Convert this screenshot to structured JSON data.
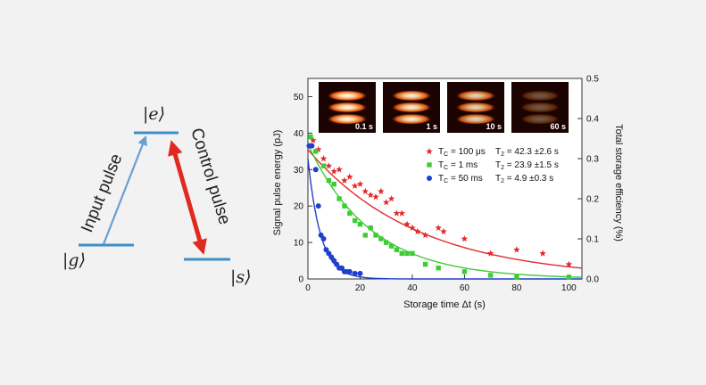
{
  "diagram": {
    "level_e": "|e⟩",
    "level_g": "|g⟩",
    "level_s": "|s⟩",
    "input_label": "Input pulse",
    "control_label": "Control pulse",
    "colors": {
      "level": "#3d8fc6",
      "input": "#6a9fd0",
      "control": "#e02a1f"
    }
  },
  "chart_data": {
    "type": "scatter",
    "xlabel": "Storage time Δt (s)",
    "ylabel": "Signal pulse energy (pJ)",
    "y2label": "Total storage efficiency (%)",
    "xlim": [
      0,
      105
    ],
    "ylim": [
      0,
      55
    ],
    "y2lim": [
      0,
      0.5
    ],
    "xticks": [
      0,
      20,
      40,
      60,
      80,
      100
    ],
    "yticks": [
      0,
      10,
      20,
      30,
      40,
      50
    ],
    "y2ticks": [
      0.0,
      0.1,
      0.2,
      0.3,
      0.4,
      0.5
    ],
    "legend_position": "right-middle",
    "series": [
      {
        "name": "T_C = 100 μs",
        "tc": "100 μs",
        "t2": "42.3 ±2.6 s",
        "marker": "star",
        "color": "#e4282a",
        "amp": 35.5,
        "tau": 42.3,
        "points": [
          [
            2,
            38
          ],
          [
            4,
            35.5
          ],
          [
            6,
            33
          ],
          [
            8,
            31
          ],
          [
            10,
            29.5
          ],
          [
            12,
            30
          ],
          [
            14,
            27
          ],
          [
            16,
            28
          ],
          [
            18,
            25.5
          ],
          [
            20,
            26
          ],
          [
            22,
            24
          ],
          [
            24,
            23
          ],
          [
            26,
            22.5
          ],
          [
            28,
            24
          ],
          [
            30,
            21
          ],
          [
            32,
            22
          ],
          [
            34,
            18
          ],
          [
            36,
            18
          ],
          [
            38,
            15
          ],
          [
            40,
            14
          ],
          [
            42,
            13
          ],
          [
            45,
            12
          ],
          [
            50,
            14
          ],
          [
            52,
            13
          ],
          [
            60,
            11
          ],
          [
            70,
            7
          ],
          [
            80,
            8
          ],
          [
            90,
            7
          ],
          [
            100,
            4
          ]
        ]
      },
      {
        "name": "T_C = 1 ms",
        "tc": "1 ms",
        "t2": "23.9 ±1.5 s",
        "marker": "square",
        "color": "#3dcc33",
        "amp": 37,
        "tau": 23.9,
        "points": [
          [
            1,
            39
          ],
          [
            3,
            35
          ],
          [
            6,
            31
          ],
          [
            8,
            27
          ],
          [
            10,
            26
          ],
          [
            12,
            22
          ],
          [
            14,
            20
          ],
          [
            16,
            18
          ],
          [
            18,
            16
          ],
          [
            20,
            15
          ],
          [
            22,
            12
          ],
          [
            24,
            14
          ],
          [
            26,
            12
          ],
          [
            28,
            11
          ],
          [
            30,
            10
          ],
          [
            32,
            9
          ],
          [
            34,
            8
          ],
          [
            36,
            7
          ],
          [
            38,
            7
          ],
          [
            40,
            7
          ],
          [
            45,
            4
          ],
          [
            50,
            3
          ],
          [
            60,
            2
          ],
          [
            70,
            1
          ],
          [
            80,
            0.5
          ],
          [
            100,
            0.5
          ]
        ]
      },
      {
        "name": "T_C = 50 ms",
        "tc": "50 ms",
        "t2": "4.9 ±0.3 s",
        "marker": "circle",
        "color": "#2040cc",
        "amp": 33,
        "tau": 4.9,
        "points": [
          [
            0.5,
            36.5
          ],
          [
            1.5,
            36.5
          ],
          [
            3,
            30
          ],
          [
            4,
            20
          ],
          [
            5,
            12
          ],
          [
            6,
            11
          ],
          [
            7,
            8
          ],
          [
            8,
            7
          ],
          [
            9,
            6
          ],
          [
            10,
            5
          ],
          [
            11,
            4
          ],
          [
            12,
            3
          ],
          [
            13,
            3
          ],
          [
            14,
            2
          ],
          [
            15,
            2
          ],
          [
            16,
            2
          ],
          [
            18,
            1.5
          ],
          [
            20,
            1.5
          ]
        ]
      }
    ]
  },
  "insets": [
    {
      "label": "0.1 s",
      "intensity": 1.0
    },
    {
      "label": "1 s",
      "intensity": 0.95
    },
    {
      "label": "10 s",
      "intensity": 0.85
    },
    {
      "label": "60 s",
      "intensity": 0.35
    }
  ]
}
